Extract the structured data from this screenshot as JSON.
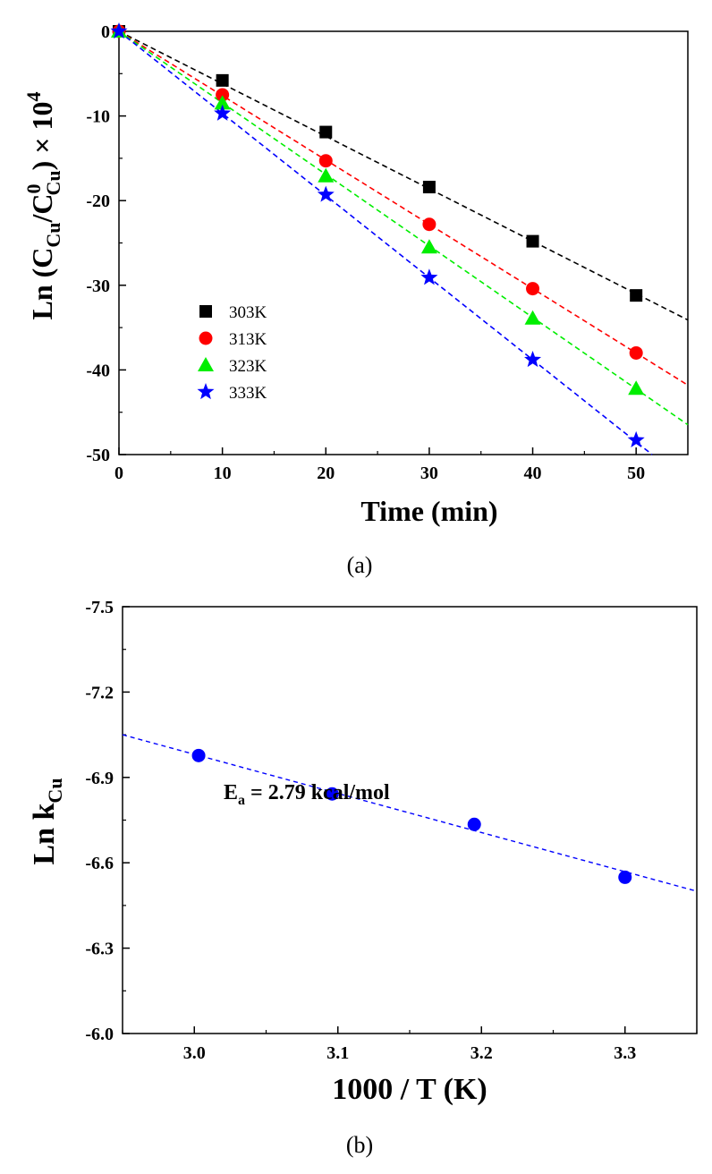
{
  "chart_data": [
    {
      "type": "scatter",
      "panel_label": "(a)",
      "xlabel": "Time (min)",
      "ylabel": {
        "prefix": "Ln (C",
        "sub1": "Cu",
        "mid1": "/C",
        "sup1": "0",
        "sub2": "Cu",
        "mid2": ") × 10",
        "sup2": "4"
      },
      "xlim": [
        0,
        55
      ],
      "ylim": [
        -50,
        0
      ],
      "xticks": [
        0,
        10,
        20,
        30,
        40,
        50
      ],
      "yticks": [
        0,
        -10,
        -20,
        -30,
        -40,
        -50
      ],
      "grid": false,
      "legend_position": "left-lower",
      "series": [
        {
          "name": "303K",
          "color": "#000000",
          "marker": "square",
          "x": [
            10,
            20,
            30,
            40,
            50
          ],
          "y": [
            -5.8,
            -11.9,
            -18.4,
            -24.8,
            -31.2
          ],
          "fit_slope": -0.62
        },
        {
          "name": "313K",
          "color": "#ff0000",
          "marker": "circle",
          "x": [
            10,
            20,
            30,
            40,
            50
          ],
          "y": [
            -7.5,
            -15.3,
            -22.8,
            -30.4,
            -38.0
          ],
          "fit_slope": -0.76
        },
        {
          "name": "323K",
          "color": "#00ee00",
          "marker": "triangle",
          "x": [
            10,
            20,
            30,
            40,
            50
          ],
          "y": [
            -8.5,
            -17.1,
            -25.5,
            -33.9,
            -42.2
          ],
          "fit_slope": -0.845
        },
        {
          "name": "333K",
          "color": "#0000ff",
          "marker": "star",
          "x": [
            10,
            20,
            30,
            40,
            50
          ],
          "y": [
            -9.7,
            -19.3,
            -29.1,
            -38.8,
            -48.3
          ],
          "fit_slope": -0.97
        }
      ]
    },
    {
      "type": "scatter",
      "panel_label": "(b)",
      "xlabel": "1000 / T (K)",
      "ylabel": {
        "prefix": "Ln k",
        "sub1": "Cu"
      },
      "xlim": [
        2.95,
        3.35
      ],
      "ylim": [
        -6.0,
        -7.5
      ],
      "xticks": [
        3.0,
        3.1,
        3.2,
        3.3
      ],
      "xtick_labels": [
        "3.0",
        "3.1",
        "3.2",
        "3.3"
      ],
      "yticks": [
        -6.0,
        -6.3,
        -6.6,
        -6.9,
        -7.2,
        -7.5
      ],
      "ytick_labels": [
        "-6.0",
        "-6.3",
        "-6.6",
        "-6.9",
        "-7.2",
        "-7.5"
      ],
      "grid": false,
      "annotation": {
        "main": "E",
        "sub": "a",
        "rest": " = 2.79 kcal/mol"
      },
      "series": [
        {
          "name": "Ln k",
          "color": "#0000ff",
          "marker": "circle",
          "x": [
            3.003,
            3.096,
            3.195,
            3.3
          ],
          "y": [
            -6.977,
            -6.842,
            -6.735,
            -6.549
          ],
          "fit_line": {
            "x": [
              2.95,
              3.35
            ],
            "y": [
              -7.05,
              -6.5
            ]
          }
        }
      ]
    }
  ]
}
